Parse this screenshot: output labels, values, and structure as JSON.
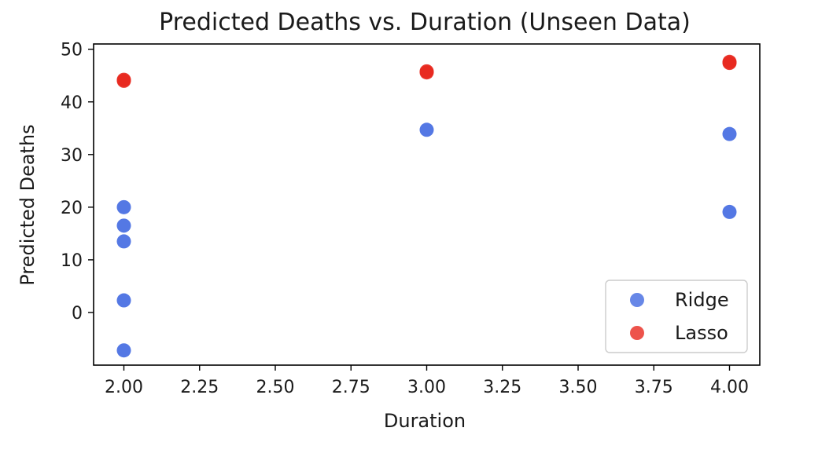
{
  "chart_data": {
    "type": "scatter",
    "title": "Predicted Deaths vs. Duration (Unseen Data)",
    "xlabel": "Duration",
    "ylabel": "Predicted Deaths",
    "xlim": [
      1.9,
      4.1
    ],
    "ylim": [
      -10,
      51
    ],
    "xticks": [
      "2.00",
      "2.25",
      "2.50",
      "2.75",
      "3.00",
      "3.25",
      "3.50",
      "3.75",
      "4.00"
    ],
    "yticks": [
      "0",
      "10",
      "20",
      "30",
      "40",
      "50"
    ],
    "grid": false,
    "legend_position": "lower right",
    "series": [
      {
        "name": "Ridge",
        "color": "#4169e1",
        "points": [
          {
            "x": 2.0,
            "y": 20.0
          },
          {
            "x": 2.0,
            "y": 16.5
          },
          {
            "x": 2.0,
            "y": 13.5
          },
          {
            "x": 2.0,
            "y": 2.3
          },
          {
            "x": 2.0,
            "y": -7.2
          },
          {
            "x": 3.0,
            "y": 34.7
          },
          {
            "x": 4.0,
            "y": 33.9
          },
          {
            "x": 4.0,
            "y": 19.1
          }
        ]
      },
      {
        "name": "Lasso",
        "color": "#e8281e",
        "points": [
          {
            "x": 2.0,
            "y": 44.0
          },
          {
            "x": 2.0,
            "y": 44.2
          },
          {
            "x": 3.0,
            "y": 45.8
          },
          {
            "x": 3.0,
            "y": 45.6
          },
          {
            "x": 4.0,
            "y": 47.4
          },
          {
            "x": 4.0,
            "y": 47.6
          }
        ]
      }
    ]
  }
}
